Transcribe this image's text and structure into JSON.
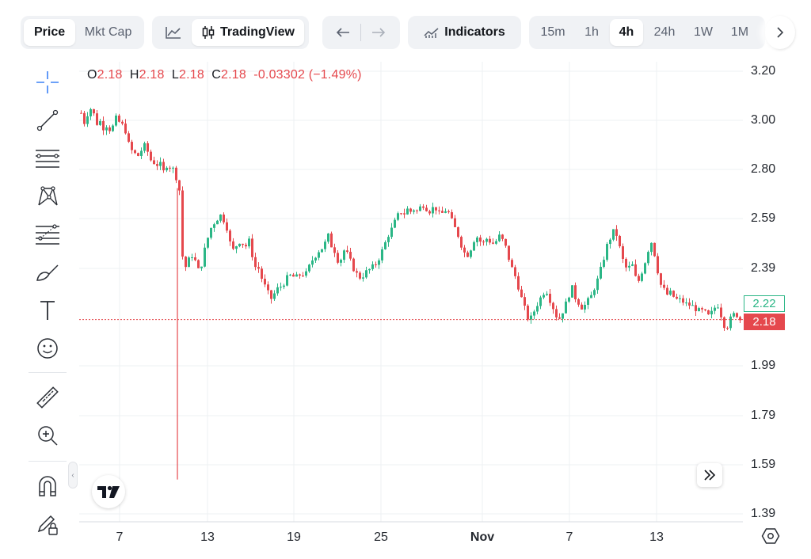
{
  "toolbar": {
    "price_tab": "Price",
    "mktcap_tab": "Mkt Cap",
    "tradingview_label": "TradingView",
    "indicators_label": "Indicators",
    "timeframes": [
      "15m",
      "1h",
      "4h",
      "24h",
      "1W",
      "1M"
    ],
    "active_timeframe": "4h"
  },
  "ohlc": {
    "o_label": "O",
    "o": "2.18",
    "h_label": "H",
    "h": "2.18",
    "l_label": "L",
    "l": "2.18",
    "c_label": "C",
    "c": "2.18",
    "change": "-0.03302 (−1.49%)"
  },
  "price_tags": {
    "high_marker": "2.22",
    "current": "2.18"
  },
  "colors": {
    "up": "#2bb686",
    "down": "#e5484d",
    "grid": "#eef0f3",
    "axis": "#d7dbe0"
  },
  "chart_data": {
    "type": "candlestick",
    "interval": "4h",
    "y_ticks": [
      "3.20",
      "3.00",
      "2.80",
      "2.59",
      "2.39",
      "1.99",
      "1.79",
      "1.59",
      "1.39"
    ],
    "x_ticks": [
      "7",
      "13",
      "19",
      "25",
      "Nov",
      "7",
      "13"
    ],
    "ylim": [
      1.39,
      3.2
    ],
    "current_price": 2.18,
    "wick_low": 1.53,
    "points": [
      [
        0,
        3.03
      ],
      [
        4,
        2.99
      ],
      [
        8,
        3.03
      ],
      [
        12,
        3.05
      ],
      [
        16,
        3.02
      ],
      [
        20,
        2.98
      ],
      [
        24,
        3.0
      ],
      [
        28,
        2.96
      ],
      [
        32,
        2.99
      ],
      [
        36,
        2.95
      ],
      [
        40,
        2.99
      ],
      [
        44,
        3.02
      ],
      [
        48,
        2.97
      ],
      [
        52,
        2.99
      ],
      [
        56,
        2.92
      ],
      [
        60,
        2.88
      ],
      [
        64,
        2.87
      ],
      [
        68,
        2.85
      ],
      [
        72,
        2.87
      ],
      [
        76,
        2.9
      ],
      [
        80,
        2.88
      ],
      [
        84,
        2.84
      ],
      [
        88,
        2.83
      ],
      [
        92,
        2.82
      ],
      [
        96,
        2.82
      ],
      [
        100,
        2.79
      ],
      [
        104,
        2.82
      ],
      [
        108,
        2.81
      ],
      [
        112,
        2.8
      ],
      [
        116,
        2.76
      ],
      [
        120,
        2.7
      ],
      [
        124,
        2.36
      ],
      [
        128,
        2.41
      ],
      [
        132,
        2.43
      ],
      [
        136,
        2.45
      ],
      [
        140,
        2.4
      ],
      [
        144,
        2.37
      ],
      [
        148,
        2.44
      ],
      [
        152,
        2.49
      ],
      [
        156,
        2.54
      ],
      [
        160,
        2.57
      ],
      [
        164,
        2.58
      ],
      [
        168,
        2.61
      ],
      [
        172,
        2.59
      ],
      [
        176,
        2.57
      ],
      [
        180,
        2.5
      ],
      [
        184,
        2.46
      ],
      [
        188,
        2.48
      ],
      [
        192,
        2.5
      ],
      [
        196,
        2.49
      ],
      [
        200,
        2.48
      ],
      [
        204,
        2.5
      ],
      [
        208,
        2.44
      ],
      [
        212,
        2.39
      ],
      [
        216,
        2.39
      ],
      [
        220,
        2.34
      ],
      [
        224,
        2.31
      ],
      [
        228,
        2.28
      ],
      [
        232,
        2.26
      ],
      [
        236,
        2.3
      ],
      [
        240,
        2.31
      ],
      [
        244,
        2.32
      ],
      [
        248,
        2.34
      ],
      [
        252,
        2.36
      ],
      [
        256,
        2.36
      ],
      [
        260,
        2.35
      ],
      [
        264,
        2.36
      ],
      [
        268,
        2.37
      ],
      [
        272,
        2.36
      ],
      [
        276,
        2.39
      ],
      [
        280,
        2.42
      ],
      [
        284,
        2.44
      ],
      [
        288,
        2.46
      ],
      [
        292,
        2.47
      ],
      [
        296,
        2.49
      ],
      [
        300,
        2.52
      ],
      [
        304,
        2.48
      ],
      [
        308,
        2.46
      ],
      [
        312,
        2.42
      ],
      [
        316,
        2.43
      ],
      [
        320,
        2.47
      ],
      [
        324,
        2.44
      ],
      [
        328,
        2.41
      ],
      [
        332,
        2.38
      ],
      [
        336,
        2.36
      ],
      [
        340,
        2.35
      ],
      [
        344,
        2.37
      ],
      [
        348,
        2.38
      ],
      [
        352,
        2.39
      ],
      [
        356,
        2.4
      ],
      [
        360,
        2.42
      ],
      [
        364,
        2.45
      ],
      [
        368,
        2.48
      ],
      [
        372,
        2.52
      ],
      [
        376,
        2.54
      ],
      [
        380,
        2.57
      ],
      [
        384,
        2.6
      ],
      [
        388,
        2.62
      ],
      [
        392,
        2.61
      ],
      [
        396,
        2.63
      ],
      [
        400,
        2.62
      ],
      [
        404,
        2.63
      ],
      [
        408,
        2.62
      ],
      [
        412,
        2.64
      ],
      [
        416,
        2.65
      ],
      [
        420,
        2.63
      ],
      [
        424,
        2.62
      ],
      [
        428,
        2.64
      ],
      [
        432,
        2.63
      ],
      [
        436,
        2.6
      ],
      [
        440,
        2.62
      ],
      [
        444,
        2.63
      ],
      [
        448,
        2.6
      ],
      [
        452,
        2.56
      ],
      [
        456,
        2.54
      ],
      [
        460,
        2.5
      ],
      [
        464,
        2.46
      ],
      [
        468,
        2.44
      ],
      [
        472,
        2.46
      ],
      [
        476,
        2.5
      ],
      [
        480,
        2.52
      ],
      [
        484,
        2.5
      ],
      [
        488,
        2.49
      ],
      [
        492,
        2.51
      ],
      [
        496,
        2.5
      ],
      [
        500,
        2.49
      ],
      [
        504,
        2.5
      ],
      [
        508,
        2.52
      ],
      [
        512,
        2.5
      ],
      [
        516,
        2.47
      ],
      [
        520,
        2.42
      ],
      [
        524,
        2.38
      ],
      [
        528,
        2.35
      ],
      [
        532,
        2.3
      ],
      [
        536,
        2.25
      ],
      [
        540,
        2.21
      ],
      [
        544,
        2.17
      ],
      [
        548,
        2.2
      ],
      [
        552,
        2.23
      ],
      [
        556,
        2.26
      ],
      [
        560,
        2.28
      ],
      [
        564,
        2.31
      ],
      [
        568,
        2.27
      ],
      [
        572,
        2.24
      ],
      [
        576,
        2.2
      ],
      [
        580,
        2.18
      ],
      [
        584,
        2.21
      ],
      [
        588,
        2.24
      ],
      [
        592,
        2.28
      ],
      [
        596,
        2.31
      ],
      [
        600,
        2.27
      ],
      [
        604,
        2.25
      ],
      [
        608,
        2.23
      ],
      [
        612,
        2.24
      ],
      [
        616,
        2.26
      ],
      [
        620,
        2.28
      ],
      [
        624,
        2.32
      ],
      [
        628,
        2.35
      ],
      [
        632,
        2.4
      ],
      [
        636,
        2.45
      ],
      [
        640,
        2.5
      ],
      [
        644,
        2.52
      ],
      [
        648,
        2.55
      ],
      [
        652,
        2.5
      ],
      [
        656,
        2.44
      ],
      [
        660,
        2.4
      ],
      [
        664,
        2.38
      ],
      [
        668,
        2.42
      ],
      [
        672,
        2.36
      ],
      [
        676,
        2.33
      ],
      [
        680,
        2.37
      ],
      [
        684,
        2.41
      ],
      [
        688,
        2.46
      ],
      [
        692,
        2.5
      ],
      [
        696,
        2.45
      ],
      [
        700,
        2.38
      ],
      [
        704,
        2.32
      ],
      [
        708,
        2.3
      ],
      [
        712,
        2.28
      ],
      [
        716,
        2.29
      ],
      [
        720,
        2.27
      ],
      [
        724,
        2.26
      ],
      [
        728,
        2.26
      ],
      [
        732,
        2.25
      ],
      [
        736,
        2.24
      ],
      [
        740,
        2.24
      ],
      [
        744,
        2.23
      ],
      [
        748,
        2.22
      ],
      [
        752,
        2.21
      ],
      [
        756,
        2.22
      ],
      [
        760,
        2.19
      ],
      [
        764,
        2.2
      ],
      [
        768,
        2.22
      ],
      [
        772,
        2.25
      ],
      [
        776,
        2.21
      ],
      [
        780,
        2.16
      ],
      [
        784,
        2.15
      ],
      [
        788,
        2.18
      ],
      [
        792,
        2.2
      ],
      [
        796,
        2.2
      ],
      [
        800,
        2.18
      ]
    ]
  }
}
